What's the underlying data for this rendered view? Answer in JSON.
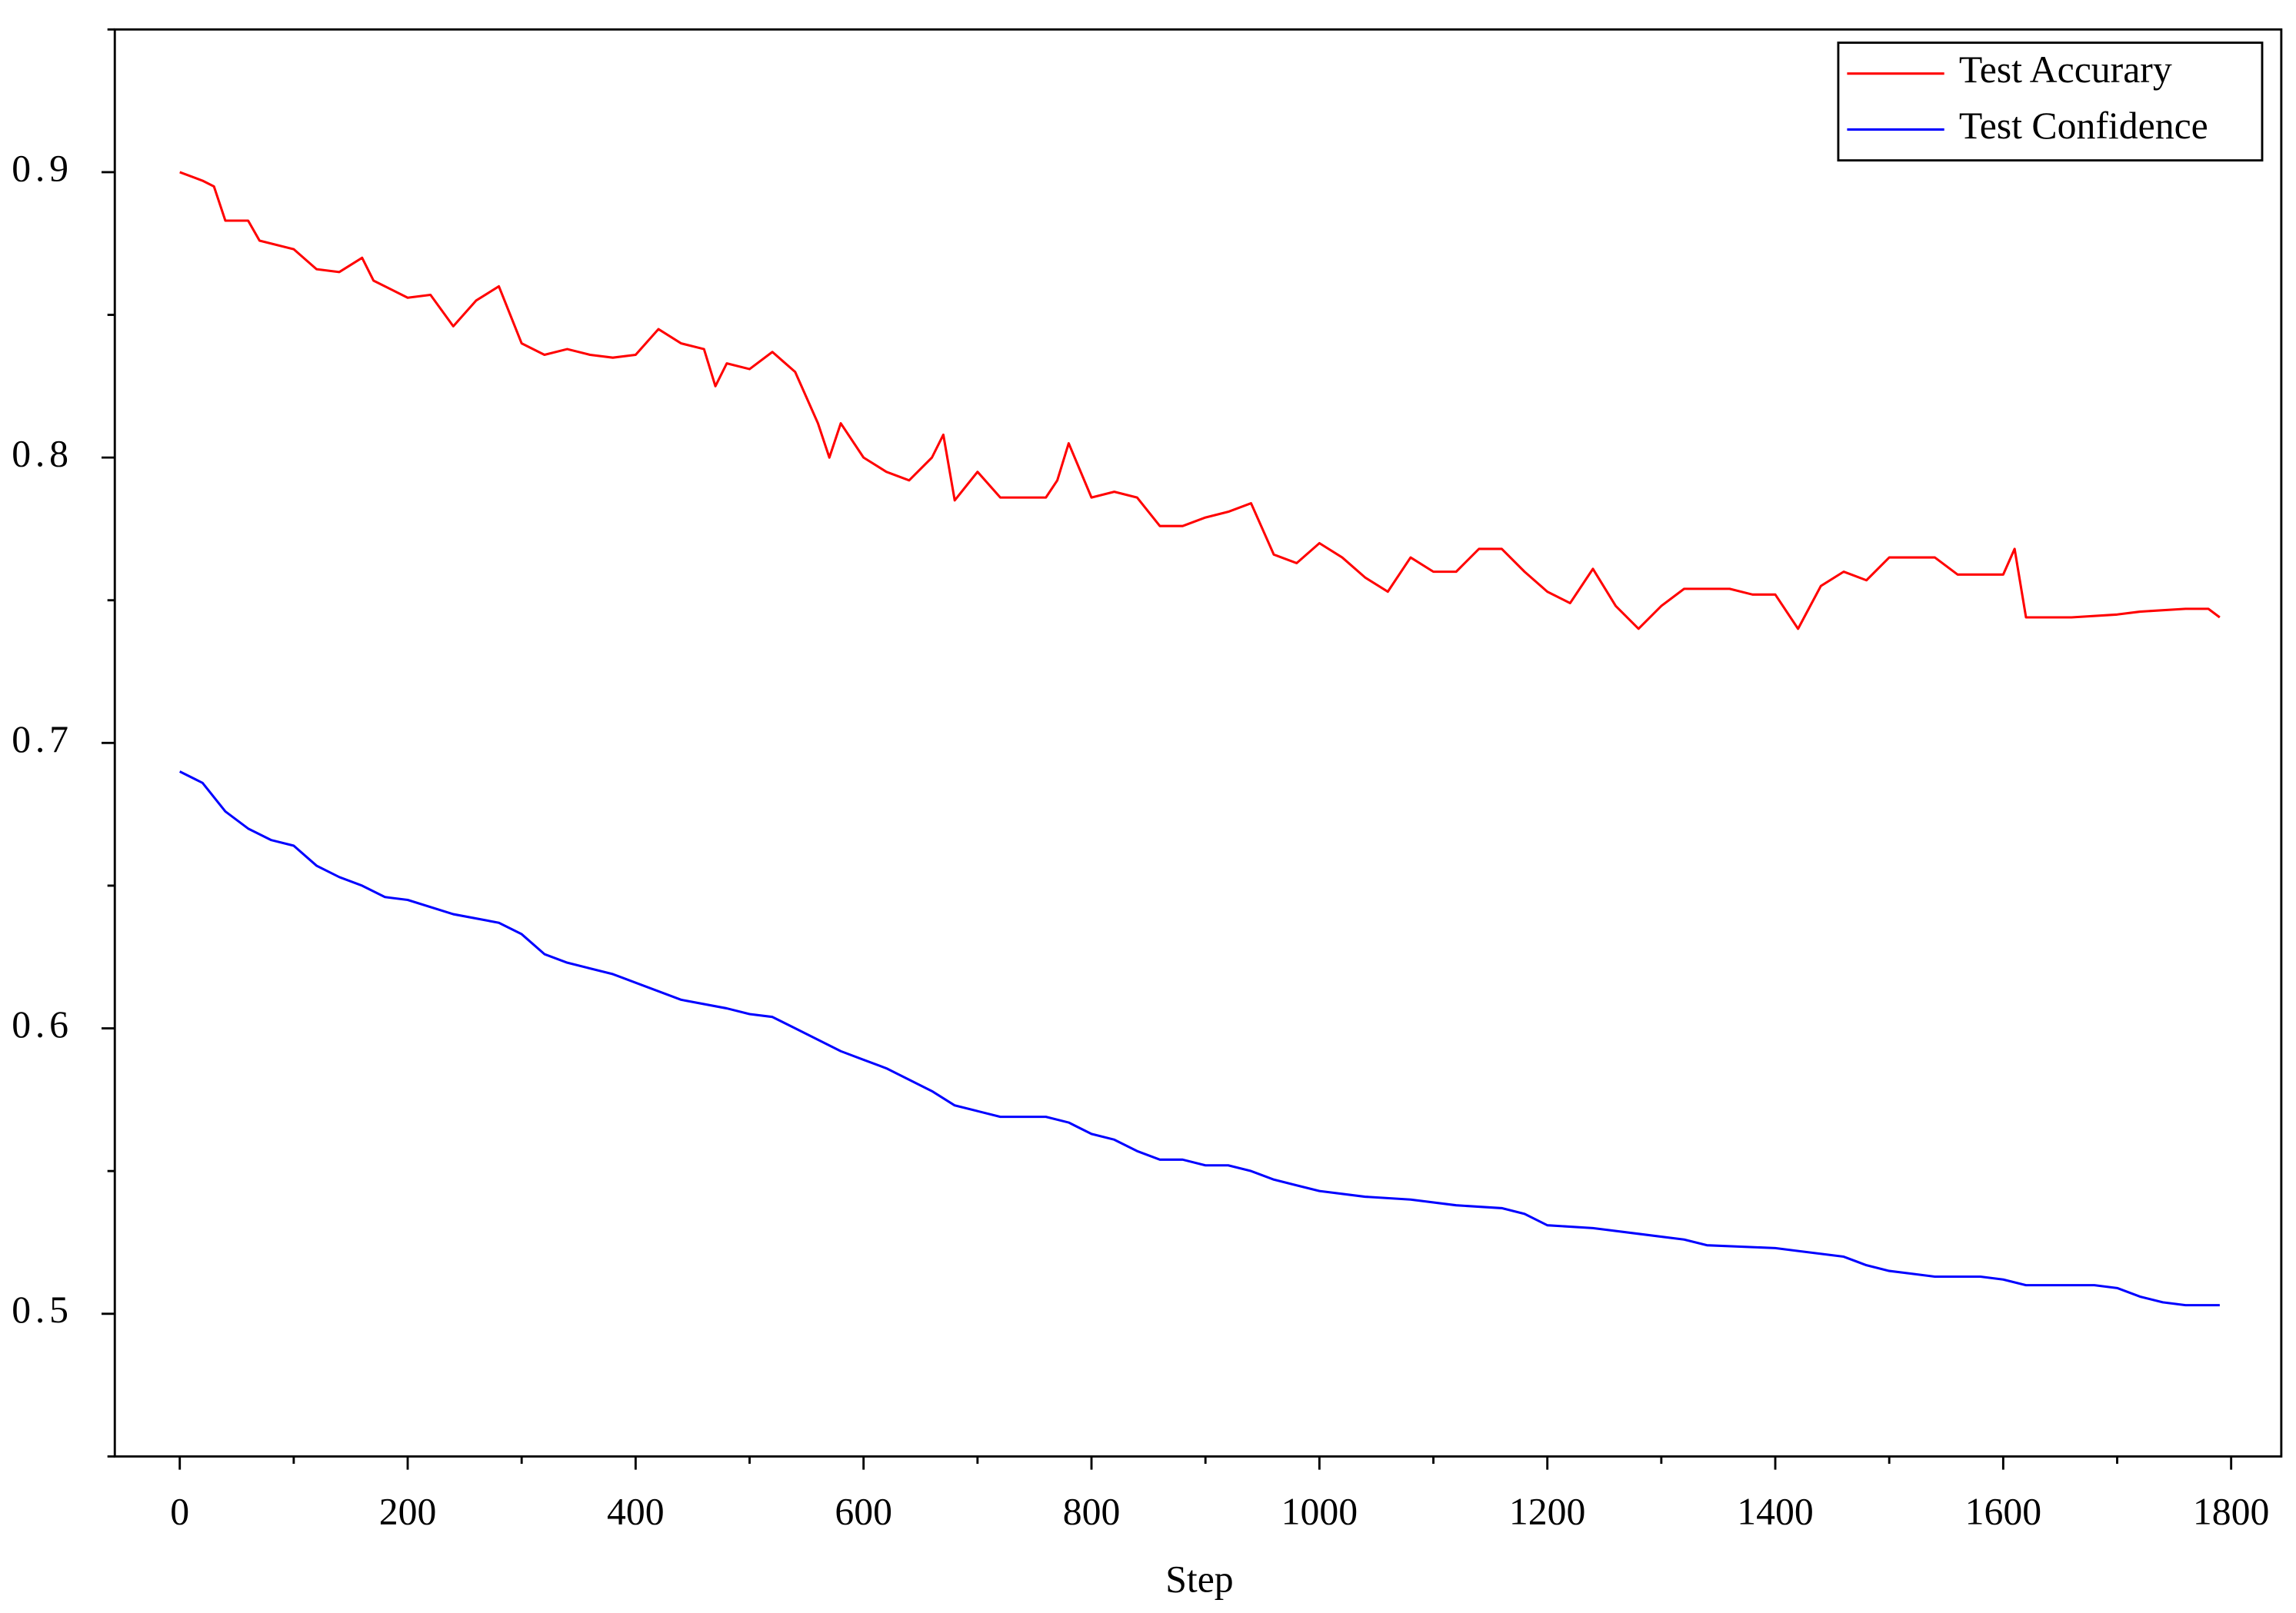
{
  "chart_data": {
    "type": "line",
    "x_label": "Step",
    "xlim": [
      -57,
      1844
    ],
    "ylim": [
      0.45,
      0.95
    ],
    "xticks": [
      0,
      200,
      400,
      600,
      800,
      1000,
      1200,
      1400,
      1600,
      1800
    ],
    "yticks": [
      0.5,
      0.6,
      0.7,
      0.8,
      0.9
    ],
    "legend": "upper right",
    "series": [
      {
        "name": "Test Accurary",
        "color": "#ff0000",
        "x": [
          0,
          20,
          30,
          40,
          60,
          70,
          100,
          120,
          140,
          160,
          170,
          200,
          220,
          240,
          260,
          280,
          300,
          320,
          340,
          360,
          380,
          400,
          420,
          440,
          460,
          470,
          480,
          500,
          520,
          540,
          560,
          570,
          580,
          600,
          620,
          640,
          660,
          670,
          680,
          700,
          720,
          760,
          770,
          780,
          800,
          820,
          840,
          860,
          880,
          900,
          920,
          940,
          960,
          980,
          1000,
          1020,
          1040,
          1060,
          1080,
          1100,
          1120,
          1140,
          1160,
          1180,
          1200,
          1220,
          1240,
          1260,
          1280,
          1300,
          1320,
          1360,
          1380,
          1400,
          1420,
          1440,
          1460,
          1480,
          1500,
          1520,
          1540,
          1560,
          1600,
          1610,
          1620,
          1660,
          1700,
          1720,
          1760,
          1780,
          1790
        ],
        "values": [
          0.9,
          0.897,
          0.895,
          0.883,
          0.883,
          0.876,
          0.873,
          0.866,
          0.865,
          0.87,
          0.862,
          0.856,
          0.857,
          0.846,
          0.855,
          0.86,
          0.84,
          0.836,
          0.838,
          0.836,
          0.835,
          0.836,
          0.845,
          0.84,
          0.838,
          0.825,
          0.833,
          0.831,
          0.837,
          0.83,
          0.812,
          0.8,
          0.812,
          0.8,
          0.795,
          0.792,
          0.8,
          0.808,
          0.785,
          0.795,
          0.786,
          0.786,
          0.792,
          0.805,
          0.786,
          0.788,
          0.786,
          0.776,
          0.776,
          0.779,
          0.781,
          0.784,
          0.766,
          0.763,
          0.77,
          0.765,
          0.758,
          0.753,
          0.765,
          0.76,
          0.76,
          0.768,
          0.768,
          0.76,
          0.753,
          0.749,
          0.761,
          0.748,
          0.74,
          0.748,
          0.754,
          0.754,
          0.752,
          0.752,
          0.74,
          0.755,
          0.76,
          0.757,
          0.765,
          0.765,
          0.765,
          0.759,
          0.759,
          0.768,
          0.744,
          0.744,
          0.745,
          0.746,
          0.747,
          0.747,
          0.744
        ]
      },
      {
        "name": "Test Confidence",
        "color": "#0000ff",
        "x": [
          0,
          20,
          40,
          60,
          80,
          100,
          120,
          140,
          160,
          180,
          200,
          240,
          280,
          300,
          320,
          340,
          360,
          380,
          400,
          420,
          440,
          480,
          500,
          520,
          540,
          560,
          580,
          600,
          620,
          640,
          660,
          680,
          700,
          720,
          760,
          780,
          800,
          820,
          840,
          860,
          880,
          900,
          920,
          940,
          960,
          980,
          1000,
          1040,
          1080,
          1120,
          1160,
          1180,
          1200,
          1240,
          1280,
          1320,
          1340,
          1400,
          1420,
          1460,
          1480,
          1500,
          1520,
          1540,
          1580,
          1600,
          1620,
          1680,
          1700,
          1720,
          1740,
          1760,
          1790
        ],
        "values": [
          0.69,
          0.686,
          0.676,
          0.67,
          0.666,
          0.664,
          0.657,
          0.653,
          0.65,
          0.646,
          0.645,
          0.64,
          0.637,
          0.633,
          0.626,
          0.623,
          0.621,
          0.619,
          0.616,
          0.613,
          0.61,
          0.607,
          0.605,
          0.604,
          0.6,
          0.596,
          0.592,
          0.589,
          0.586,
          0.582,
          0.578,
          0.573,
          0.571,
          0.569,
          0.569,
          0.567,
          0.563,
          0.561,
          0.557,
          0.554,
          0.554,
          0.552,
          0.552,
          0.55,
          0.547,
          0.545,
          0.543,
          0.541,
          0.54,
          0.538,
          0.537,
          0.535,
          0.531,
          0.53,
          0.528,
          0.526,
          0.524,
          0.523,
          0.522,
          0.52,
          0.517,
          0.515,
          0.514,
          0.513,
          0.513,
          0.512,
          0.51,
          0.51,
          0.509,
          0.506,
          0.504,
          0.503,
          0.503
        ]
      }
    ]
  }
}
